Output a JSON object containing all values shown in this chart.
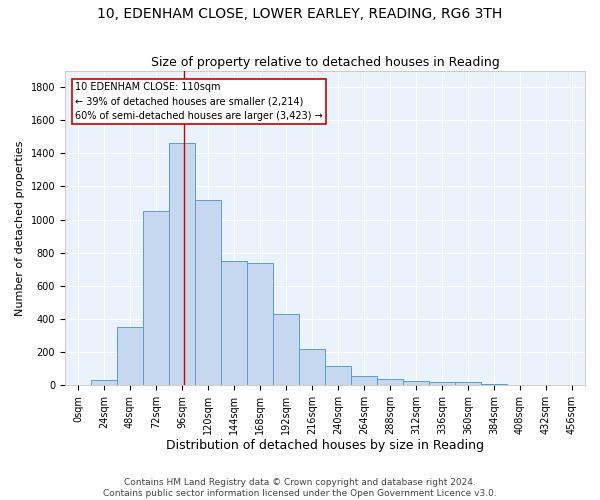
{
  "title1": "10, EDENHAM CLOSE, LOWER EARLEY, READING, RG6 3TH",
  "title2": "Size of property relative to detached houses in Reading",
  "xlabel": "Distribution of detached houses by size in Reading",
  "ylabel": "Number of detached properties",
  "footer1": "Contains HM Land Registry data © Crown copyright and database right 2024.",
  "footer2": "Contains public sector information licensed under the Open Government Licence v3.0.",
  "bar_color_face": "#c5d8ef",
  "bar_color_edge": "#5a9ec8",
  "annotation_box_color": "#cc0000",
  "annotation_label": "10 EDENHAM CLOSE: 110sqm",
  "annotation_line1": "← 39% of detached houses are smaller (2,214)",
  "annotation_line2": "60% of semi-detached houses are larger (3,423) →",
  "red_line_x": 110,
  "ylim": [
    0,
    1900
  ],
  "yticks": [
    0,
    200,
    400,
    600,
    800,
    1000,
    1200,
    1400,
    1600,
    1800
  ],
  "bin_edges": [
    0,
    24,
    48,
    72,
    96,
    120,
    144,
    168,
    192,
    216,
    240,
    264,
    288,
    312,
    336,
    360,
    384,
    408,
    432,
    456,
    480
  ],
  "bar_heights": [
    0,
    30,
    350,
    1050,
    1460,
    1120,
    750,
    740,
    430,
    220,
    115,
    55,
    35,
    25,
    20,
    15,
    5,
    0,
    0,
    0
  ],
  "bg_color": "#eaf2fb",
  "grid_color": "#ffffff",
  "title1_fontsize": 10,
  "title2_fontsize": 9,
  "xlabel_fontsize": 9,
  "ylabel_fontsize": 8,
  "tick_fontsize": 7,
  "footer_fontsize": 6.5
}
